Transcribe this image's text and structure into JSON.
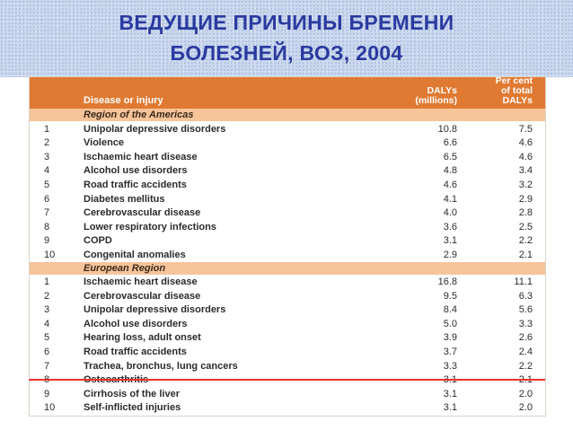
{
  "title": {
    "line1": "ВЕДУЩИЕ ПРИЧИНЫ БРЕМЕНИ",
    "line2": "БОЛЕЗНЕЙ, ВОЗ, 2004"
  },
  "table": {
    "headers": {
      "disease": "Disease or injury",
      "dalys_line1": "DALYs",
      "dalys_line2": "(millions)",
      "pct_line1": "Per cent",
      "pct_line2": "of total",
      "pct_line3": "DALYs"
    },
    "regions": [
      {
        "name": "Region of the Americas",
        "rows": [
          {
            "rank": "1",
            "disease": "Unipolar depressive disorders",
            "dalys": "10.8",
            "pct": "7.5"
          },
          {
            "rank": "2",
            "disease": "Violence",
            "dalys": "6.6",
            "pct": "4.6"
          },
          {
            "rank": "3",
            "disease": "Ischaemic heart disease",
            "dalys": "6.5",
            "pct": "4.6"
          },
          {
            "rank": "4",
            "disease": "Alcohol use disorders",
            "dalys": "4.8",
            "pct": "3.4"
          },
          {
            "rank": "5",
            "disease": "Road traffic accidents",
            "dalys": "4.6",
            "pct": "3.2"
          },
          {
            "rank": "6",
            "disease": "Diabetes mellitus",
            "dalys": "4.1",
            "pct": "2.9"
          },
          {
            "rank": "7",
            "disease": "Cerebrovascular disease",
            "dalys": "4.0",
            "pct": "2.8"
          },
          {
            "rank": "8",
            "disease": "Lower respiratory infections",
            "dalys": "3.6",
            "pct": "2.5"
          },
          {
            "rank": "9",
            "disease": "COPD",
            "dalys": "3.1",
            "pct": "2.2"
          },
          {
            "rank": "10",
            "disease": "Congenital anomalies",
            "dalys": "2.9",
            "pct": "2.1"
          }
        ]
      },
      {
        "name": "European Region",
        "rows": [
          {
            "rank": "1",
            "disease": "Ischaemic heart disease",
            "dalys": "16.8",
            "pct": "11.1"
          },
          {
            "rank": "2",
            "disease": "Cerebrovascular disease",
            "dalys": "9.5",
            "pct": "6.3"
          },
          {
            "rank": "3",
            "disease": "Unipolar depressive disorders",
            "dalys": "8.4",
            "pct": "5.6"
          },
          {
            "rank": "4",
            "disease": "Alcohol use disorders",
            "dalys": "5.0",
            "pct": "3.3"
          },
          {
            "rank": "5",
            "disease": "Hearing loss, adult onset",
            "dalys": "3.9",
            "pct": "2.6"
          },
          {
            "rank": "6",
            "disease": "Road traffic accidents",
            "dalys": "3.7",
            "pct": "2.4"
          },
          {
            "rank": "7",
            "disease": "Trachea, bronchus, lung cancers",
            "dalys": "3.3",
            "pct": "2.2"
          },
          {
            "rank": "8",
            "disease": "Osteoarthritis",
            "dalys": "3.1",
            "pct": "2.1"
          },
          {
            "rank": "9",
            "disease": "Cirrhosis of the liver",
            "dalys": "3.1",
            "pct": "2.0"
          },
          {
            "rank": "10",
            "disease": "Self-inflicted injuries",
            "dalys": "3.1",
            "pct": "2.0"
          }
        ]
      }
    ]
  }
}
